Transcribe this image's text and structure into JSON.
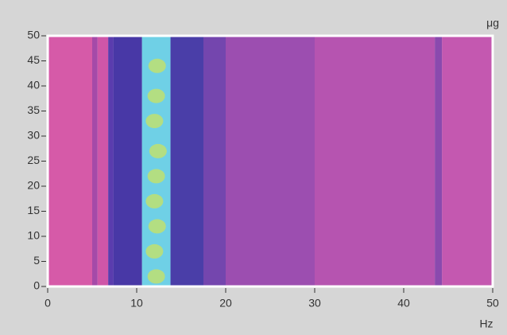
{
  "chart_data": {
    "type": "heatmap",
    "x_label": "Hz",
    "y_label": "μg",
    "xlim": [
      0,
      50
    ],
    "ylim": [
      0,
      50
    ],
    "xticks": [
      0,
      10,
      20,
      30,
      40,
      50
    ],
    "yticks": [
      0,
      5,
      10,
      15,
      20,
      25,
      30,
      35,
      40,
      45,
      50
    ],
    "bands": [
      {
        "x": [
          0,
          5
        ],
        "color": "#d65aa8"
      },
      {
        "x": [
          5,
          5.6
        ],
        "color": "#a54aa8"
      },
      {
        "x": [
          5.6,
          6.8
        ],
        "color": "#cf56a8"
      },
      {
        "x": [
          6.8,
          7.4
        ],
        "color": "#5a3cae"
      },
      {
        "x": [
          7.4,
          10.6
        ],
        "color": "#4838a6"
      },
      {
        "x": [
          10.6,
          13.8
        ],
        "color": "#6fd0e6"
      },
      {
        "x": [
          13.8,
          17.5
        ],
        "color": "#4a3ea8"
      },
      {
        "x": [
          17.5,
          20
        ],
        "color": "#7446ae"
      },
      {
        "x": [
          20,
          30
        ],
        "color": "#9c4eb0"
      },
      {
        "x": [
          30,
          43.5
        ],
        "color": "#b654b0"
      },
      {
        "x": [
          43.5,
          44.3
        ],
        "color": "#8a4aae"
      },
      {
        "x": [
          44.3,
          50
        ],
        "color": "#c458b0"
      }
    ],
    "blobs": {
      "color": "#bfe070",
      "x": [
        12.2,
        12,
        12.3,
        12,
        12.2,
        12.4,
        12,
        12.2,
        12.3
      ],
      "y": [
        2,
        7,
        12,
        17,
        22,
        27,
        33,
        38,
        44
      ]
    }
  }
}
